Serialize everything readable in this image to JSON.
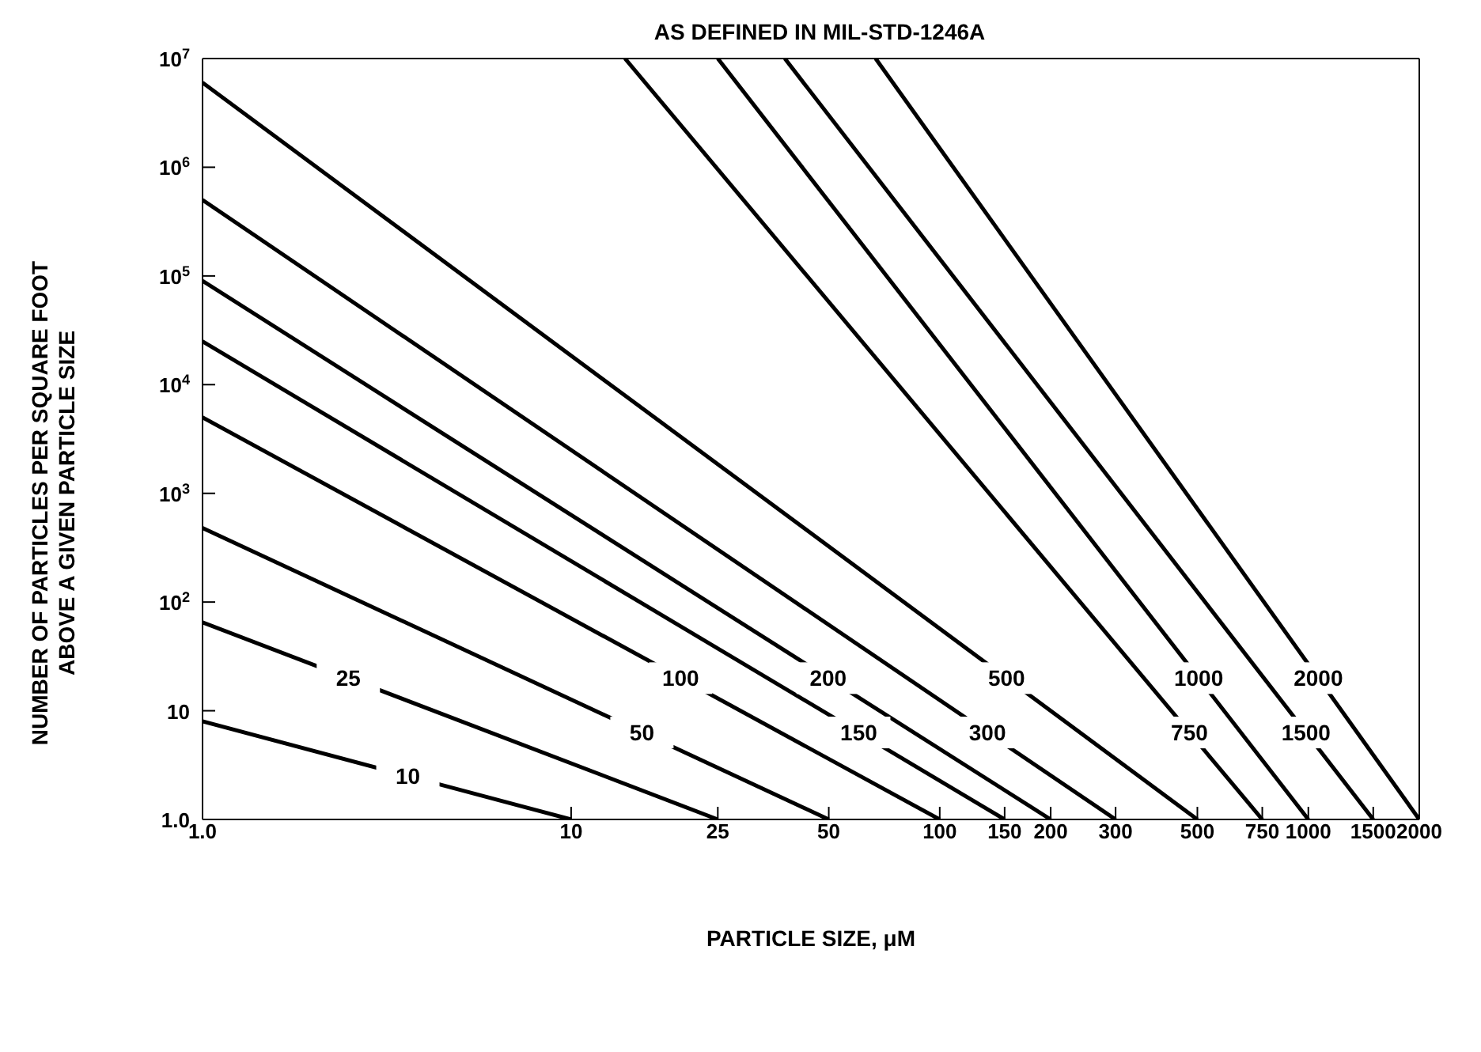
{
  "chart_data": {
    "type": "line",
    "title": "AS DEFINED IN MIL-STD-1246A",
    "xlabel": "PARTICLE SIZE, μM",
    "ylabel": "NUMBER OF PARTICLES PER SQUARE FOOT\nABOVE A GIVEN PARTICLE SIZE",
    "series": [
      {
        "name": "10",
        "color": "#000000",
        "x": [
          1,
          10
        ],
        "values": [
          8,
          1
        ]
      },
      {
        "name": "25",
        "color": "#000000",
        "x": [
          1,
          25
        ],
        "values": [
          65,
          1
        ]
      },
      {
        "name": "50",
        "color": "#000000",
        "x": [
          1,
          50
        ],
        "values": [
          480,
          1
        ]
      },
      {
        "name": "100",
        "color": "#000000",
        "x": [
          1,
          100
        ],
        "values": [
          5000,
          1
        ]
      },
      {
        "name": "150",
        "color": "#000000",
        "x": [
          1,
          150
        ],
        "values": [
          25000,
          1
        ]
      },
      {
        "name": "200",
        "color": "#000000",
        "x": [
          1,
          200
        ],
        "values": [
          90000,
          1
        ]
      },
      {
        "name": "300",
        "color": "#000000",
        "x": [
          1,
          300
        ],
        "values": [
          500000,
          1
        ]
      },
      {
        "name": "500",
        "color": "#000000",
        "x": [
          1,
          500
        ],
        "values": [
          6000000,
          1
        ]
      },
      {
        "name": "750",
        "color": "#000000",
        "x": [
          14,
          750
        ],
        "values": [
          10000000,
          1
        ]
      },
      {
        "name": "1000",
        "color": "#000000",
        "x": [
          25,
          1000
        ],
        "values": [
          10000000,
          1
        ]
      },
      {
        "name": "1500",
        "color": "#000000",
        "x": [
          38,
          1500
        ],
        "values": [
          10000000,
          1
        ]
      },
      {
        "name": "2000",
        "color": "#000000",
        "x": [
          67,
          2000
        ],
        "values": [
          10000000,
          1
        ]
      }
    ],
    "xlim": [
      1,
      2000
    ],
    "xticks": [
      {
        "value": 1,
        "label": "1.0"
      },
      10,
      25,
      50,
      100,
      150,
      200,
      300,
      500,
      750,
      1000,
      1500,
      2000
    ],
    "ylim": [
      1,
      10000000
    ],
    "yticks": [
      {
        "value": 1,
        "label": "1.0"
      },
      10,
      {
        "value": 100,
        "label": "10$^{2}$"
      },
      {
        "value": 1000,
        "label": "10$^{3}$"
      },
      {
        "value": 10000,
        "label": "10$^{4}$"
      },
      {
        "value": 100000,
        "label": "10$^{5}$"
      },
      {
        "value": 1000000,
        "label": "10$^{6}$"
      },
      {
        "value": 10000000,
        "label": "10$^{7}$"
      }
    ],
    "log": "xy",
    "grid": false,
    "legend": false,
    "marker": "none",
    "line_style": "solid"
  }
}
